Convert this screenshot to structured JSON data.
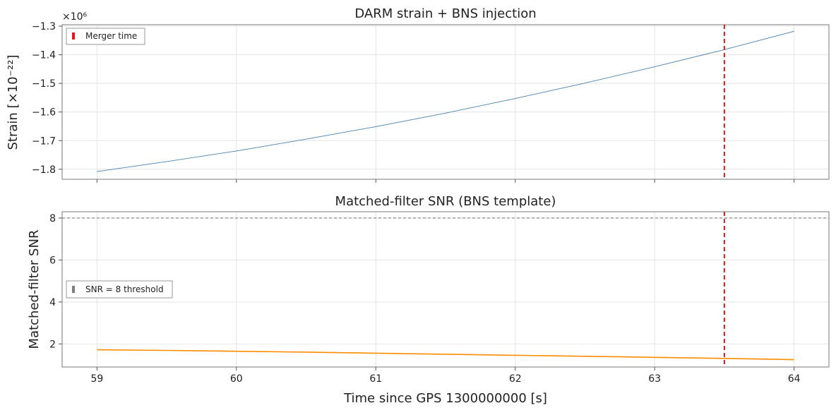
{
  "chart_data": [
    {
      "type": "line",
      "title": "DARM strain + BNS injection",
      "xlabel": "",
      "ylabel": "Strain [×10⁻²²]",
      "offset_label": "×10⁶",
      "xlim": [
        58.75,
        64.25
      ],
      "ylim": [
        -1.835,
        -1.295
      ],
      "x_ticks": [
        59,
        60,
        61,
        62,
        63,
        64
      ],
      "y_ticks": [
        -1.8,
        -1.7,
        -1.6,
        -1.5,
        -1.4,
        -1.3
      ],
      "y_tick_labels": [
        "−1.8",
        "−1.7",
        "−1.6",
        "−1.5",
        "−1.4",
        "−1.3"
      ],
      "grid": true,
      "legend": [
        {
          "label": "Merger time",
          "color": "#e41a1c"
        }
      ],
      "legend_position": "upper-left",
      "series": [
        {
          "color": "#4682b4",
          "x": [
            59,
            59.5,
            60,
            60.5,
            61,
            61.5,
            62,
            62.5,
            63,
            63.5,
            64
          ],
          "y": [
            -1.808,
            -1.773,
            -1.736,
            -1.695,
            -1.651,
            -1.604,
            -1.553,
            -1.499,
            -1.442,
            -1.382,
            -1.318
          ]
        }
      ],
      "vlines": [
        {
          "x": 63.5,
          "color": "#e41a1c",
          "style": "dashed",
          "label": "Merger time"
        }
      ]
    },
    {
      "type": "line",
      "title": "Matched-filter SNR (BNS template)",
      "xlabel": "Time since GPS 1300000000 [s]",
      "ylabel": "Matched-filter SNR",
      "xlim": [
        58.75,
        64.25
      ],
      "ylim": [
        0.9,
        8.3
      ],
      "x_ticks": [
        59,
        60,
        61,
        62,
        63,
        64
      ],
      "y_ticks": [
        2,
        4,
        6,
        8
      ],
      "y_tick_labels": [
        "2",
        "4",
        "6",
        "8"
      ],
      "grid": true,
      "legend": [
        {
          "label": "SNR = 8 threshold",
          "color": "#808080"
        }
      ],
      "legend_position": "center-left",
      "series": [
        {
          "color": "#ff8c00",
          "x": [
            59,
            59.5,
            60,
            60.5,
            61,
            61.5,
            62,
            62.5,
            63,
            63.5,
            64
          ],
          "y": [
            1.72,
            1.69,
            1.65,
            1.61,
            1.56,
            1.51,
            1.46,
            1.41,
            1.36,
            1.31,
            1.25
          ]
        }
      ],
      "vlines": [
        {
          "x": 63.5,
          "color": "#e41a1c",
          "style": "dashed"
        }
      ],
      "hlines": [
        {
          "y": 8,
          "color": "#808080",
          "style": "dashed",
          "label": "SNR = 8 threshold"
        }
      ]
    }
  ]
}
